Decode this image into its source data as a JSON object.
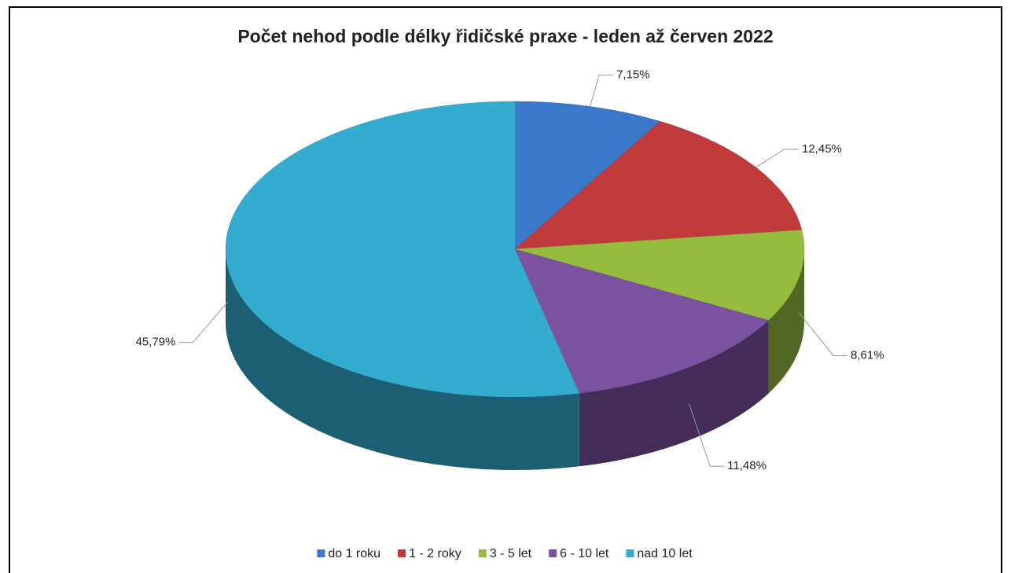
{
  "chart_data": {
    "type": "pie3d",
    "title": "Počet nehod podle délky řidičské praxe - leden až červen 2022",
    "categories": [
      "do 1 roku",
      "1 - 2 roky",
      "3 - 5 let",
      "6 - 10 let",
      "nad 10 let"
    ],
    "values": [
      7.15,
      12.45,
      8.61,
      11.48,
      45.79
    ],
    "value_labels": [
      "7,15%",
      "12,45%",
      "8,61%",
      "11,48%",
      "45,79%"
    ],
    "colors": [
      "#3a78c9",
      "#c0393b",
      "#95bb3f",
      "#7a52a0",
      "#33acd0"
    ],
    "legend": "bottom"
  }
}
